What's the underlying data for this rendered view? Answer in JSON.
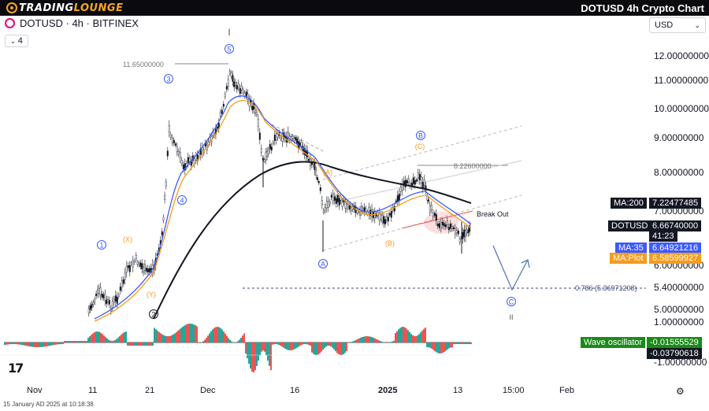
{
  "header": {
    "logo_text_a": "TRADING",
    "logo_text_b": "LOUNGE",
    "title": "DOTUSD 4h Crypto Chart"
  },
  "symbol": {
    "label": "DOTUSD · 4h · BITFINEX",
    "indicator_count": "4"
  },
  "currency": "USD",
  "price_axis": [
    "12.00000000",
    "11.00000000",
    "10.00000000",
    "9.00000000",
    "8.00000000",
    "7.00000000",
    "6.00000000",
    "5.40000000",
    "5.00000000",
    "1.00000000",
    "-1.00000000"
  ],
  "tags": {
    "ma200_label": "MA:200",
    "ma200_value": "7.22477485",
    "price_label": "DOTUSD",
    "price_value": "6.66740000",
    "countdown": "41:23",
    "ma35_label": "MA:35",
    "ma35_value": "6.64921216",
    "maplot_label": "MA:Plot",
    "maplot_value": "6.58599927",
    "wave_label": "Wave oscillator",
    "wave_value1": "-0.01555529",
    "wave_value2": "-0.03790618"
  },
  "annotations": {
    "high_label": "11.65000000",
    "b_level": "8.22600000",
    "fib_level": "0.786 (5.36971208)",
    "break_out": "Break Out",
    "wave_1": "1",
    "wave_2": "2",
    "wave_3": "3",
    "wave_4": "4",
    "wave_5": "5",
    "wave_A": "A",
    "wave_B": "B",
    "wave_C": "C",
    "sub_x": "(X)",
    "sub_y": "(Y)",
    "sub_a": "(A)",
    "sub_b": "(B)",
    "sub_c": "(C)",
    "roman_i": "I",
    "roman_ii": "II"
  },
  "x_axis": [
    "Nov",
    "11",
    "21",
    "Dec",
    "16",
    "2025",
    "13",
    "15:00",
    "Feb"
  ],
  "footer": {
    "timestamp": "15 January AD 2025 at 10:18:38",
    "tv_logo": "17"
  },
  "colors": {
    "ma200": "#131722",
    "ma35": "#3d5afe",
    "maplot": "#f59c1a",
    "wave_up": "#26a69a",
    "wave_down": "#ef5350",
    "green_tag": "#1b8a1b",
    "wave_label_color": "#3d5afe",
    "orange_label": "#f59c1a"
  }
}
